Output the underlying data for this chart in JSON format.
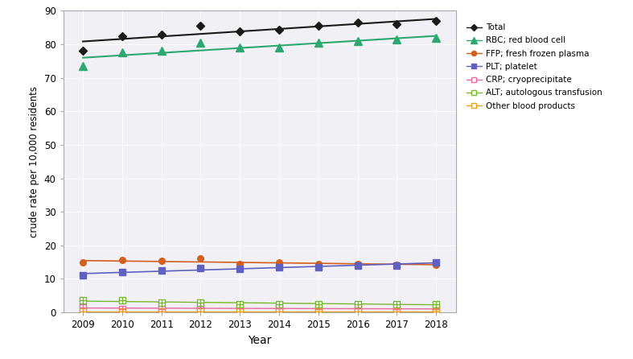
{
  "years": [
    2009,
    2010,
    2011,
    2012,
    2013,
    2014,
    2015,
    2016,
    2017,
    2018
  ],
  "Total": [
    78.0,
    82.5,
    83.0,
    85.5,
    83.8,
    84.3,
    85.5,
    86.5,
    86.0,
    87.0
  ],
  "RBC": [
    73.5,
    77.5,
    78.0,
    80.5,
    79.0,
    79.0,
    80.5,
    81.0,
    81.5,
    82.0
  ],
  "FFP": [
    14.8,
    15.5,
    15.3,
    16.0,
    14.5,
    14.8,
    14.5,
    14.5,
    14.2,
    14.2
  ],
  "PLT": [
    11.0,
    12.0,
    12.5,
    13.2,
    13.0,
    13.5,
    13.5,
    14.0,
    14.0,
    15.0
  ],
  "CRP": [
    1.5,
    1.0,
    1.0,
    1.5,
    1.2,
    1.2,
    1.0,
    1.2,
    1.0,
    1.0
  ],
  "ALT": [
    3.5,
    3.5,
    3.0,
    3.0,
    2.5,
    2.5,
    2.5,
    2.5,
    2.5,
    2.5
  ],
  "Other": [
    0.3,
    0.3,
    0.3,
    0.3,
    0.3,
    0.3,
    0.3,
    0.3,
    0.3,
    0.3
  ],
  "colors": {
    "Total": "#1a1a1a",
    "RBC": "#2ca870",
    "FFP": "#d45f1e",
    "PLT": "#6060c0",
    "CRP": "#e868a0",
    "ALT": "#78b830",
    "Other": "#e8a020"
  },
  "legend_labels": {
    "Total": "Total",
    "RBC": "RBC; red blood cell",
    "FFP": "FFP; fresh frozen plasma",
    "PLT": "PLT; platelet",
    "CRP": "CRP; cryoprecipitate",
    "ALT": "ALT; autologous transfusion",
    "Other": "Other blood products"
  },
  "ylabel": "crude rate per 10,000 residents",
  "xlabel": "Year",
  "ylim": [
    0,
    90
  ],
  "yticks": [
    0,
    10,
    20,
    30,
    40,
    50,
    60,
    70,
    80,
    90
  ],
  "fig_bg": "#ffffff",
  "plot_bg": "#f0f0f5",
  "grid_color": "#ffffff",
  "spine_color": "#aaaaaa"
}
